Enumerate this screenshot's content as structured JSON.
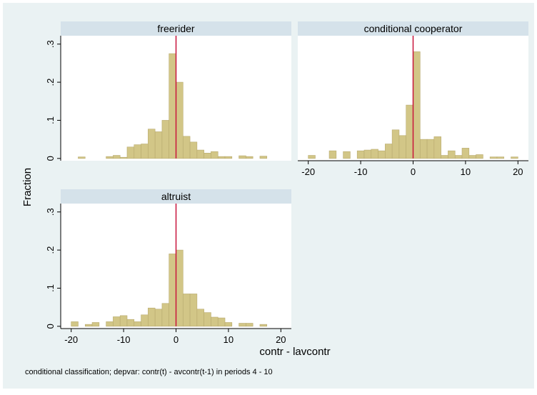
{
  "figure": {
    "ylabel": "Fraction",
    "xlabel": "contr - lavcontr",
    "note": "conditional classification; depvar: contr(t) - avcontr(t-1) in periods 4 - 10"
  },
  "chart_data": [
    {
      "type": "histogram",
      "title": "freerider",
      "color": "#d2c687",
      "xline": 0,
      "xline_color": "#c8143c",
      "bins": [
        -20,
        -18.667,
        -17.333,
        -16,
        -14.667,
        -13.333,
        -12,
        -10.667,
        -9.333,
        -8,
        -6.667,
        -5.333,
        -4,
        -2.667,
        -1.333,
        0,
        1.333,
        2.667,
        4,
        5.333,
        6.667,
        8,
        9.333,
        10.667,
        12,
        13.333,
        14.667,
        16,
        17.333,
        18.667,
        20
      ],
      "values": [
        0,
        0.004,
        0,
        0,
        0,
        0.005,
        0.008,
        0.003,
        0.03,
        0.036,
        0.038,
        0.077,
        0.07,
        0.1,
        0.275,
        0.2,
        0.058,
        0.043,
        0.022,
        0.014,
        0.018,
        0.005,
        0.005,
        0,
        0.007,
        0.005,
        0,
        0.006,
        0,
        0
      ],
      "xlim": [
        -22,
        22
      ],
      "ylim": [
        -0.006,
        0.322
      ],
      "yticks": [
        0,
        {
          "value": 0.1,
          "label": ".1"
        },
        {
          "value": 0.2,
          "label": ".2"
        },
        {
          "value": 0.3,
          "label": ".3"
        }
      ]
    },
    {
      "type": "histogram",
      "title": "conditional cooperator",
      "color": "#d2c687",
      "xline": 0,
      "xline_color": "#c8143c",
      "bins": [
        -20,
        -18.667,
        -17.333,
        -16,
        -14.667,
        -13.333,
        -12,
        -10.667,
        -9.333,
        -8,
        -6.667,
        -5.333,
        -4,
        -2.667,
        -1.333,
        0,
        1.333,
        2.667,
        4,
        5.333,
        6.667,
        8,
        9.333,
        10.667,
        12,
        13.333,
        14.667,
        16,
        17.333,
        18.667,
        20
      ],
      "values": [
        0.008,
        0,
        0,
        0.02,
        0,
        0.018,
        0,
        0.02,
        0.022,
        0.024,
        0.02,
        0.038,
        0.075,
        0.06,
        0.14,
        0.28,
        0.05,
        0.05,
        0.057,
        0.008,
        0.02,
        0.008,
        0.027,
        0.008,
        0.01,
        0,
        0.004,
        0.004,
        0,
        0.004
      ],
      "xlim": [
        -22,
        22
      ],
      "ylim": [
        -0.006,
        0.322
      ],
      "xticks": [
        -20,
        -10,
        0,
        10,
        20
      ]
    },
    {
      "type": "histogram",
      "title": "altruist",
      "color": "#d2c687",
      "xline": 0,
      "xline_color": "#c8143c",
      "bins": [
        -20,
        -18.667,
        -17.333,
        -16,
        -14.667,
        -13.333,
        -12,
        -10.667,
        -9.333,
        -8,
        -6.667,
        -5.333,
        -4,
        -2.667,
        -1.333,
        0,
        1.333,
        2.667,
        4,
        5.333,
        6.667,
        8,
        9.333,
        10.667,
        12,
        13.333,
        14.667,
        16,
        17.333,
        18.667,
        20
      ],
      "values": [
        0.012,
        0,
        0.005,
        0.01,
        0,
        0.012,
        0.025,
        0.028,
        0.018,
        0.012,
        0.03,
        0.048,
        0.045,
        0.06,
        0.19,
        0.2,
        0.085,
        0.085,
        0.045,
        0.036,
        0.024,
        0.022,
        0.01,
        0,
        0.008,
        0.008,
        0,
        0.005,
        0,
        0
      ],
      "xlim": [
        -22,
        22
      ],
      "ylim": [
        -0.006,
        0.322
      ],
      "yticks": [
        0,
        {
          "value": 0.1,
          "label": ".1"
        },
        {
          "value": 0.2,
          "label": ".2"
        },
        {
          "value": 0.3,
          "label": ".3"
        }
      ],
      "xticks": [
        -20,
        -10,
        0,
        10,
        20
      ]
    }
  ]
}
